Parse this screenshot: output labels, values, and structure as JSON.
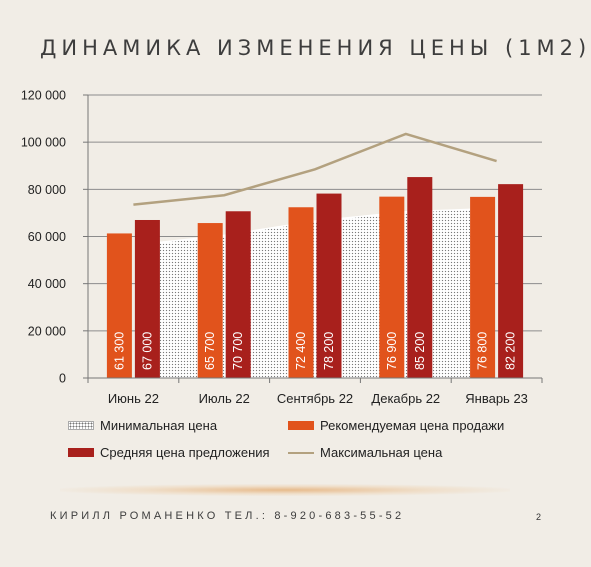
{
  "slide": {
    "title": "ДИНАМИКА ИЗМЕНЕНИЯ ЦЕНЫ (1М2)",
    "footer": "КИРИЛЛ РОМАНЕНКО ТЕЛ.: 8-920-683-55-52",
    "page_number": "2"
  },
  "colors": {
    "recommended": "#e1531c",
    "average": "#a8201c",
    "max_line": "#b3a17f",
    "min_area": "#ffffff"
  },
  "chart_data": {
    "type": "bar",
    "categories": [
      "Июнь 22",
      "Июль 22",
      "Сентябрь 22",
      "Декабрь 22",
      "Январь 23"
    ],
    "ylim": [
      0,
      120000
    ],
    "yticks": [
      0,
      20000,
      40000,
      60000,
      80000,
      100000,
      120000
    ],
    "ytick_labels": [
      "0",
      "20 000",
      "40 000",
      "60 000",
      "80 000",
      "100 000",
      "120 000"
    ],
    "grid": true,
    "legend_position": "bottom",
    "series": [
      {
        "name": "Минимальная цена",
        "kind": "area",
        "values": [
          57500,
          60500,
          66500,
          70500,
          71500
        ]
      },
      {
        "name": "Рекомендуемая цена продажи",
        "kind": "bar",
        "values": [
          61300,
          65700,
          72400,
          76900,
          76800
        ],
        "labels": [
          "61 300",
          "65 700",
          "72 400",
          "76 900",
          "76 800"
        ]
      },
      {
        "name": "Средняя цена предложения",
        "kind": "bar",
        "values": [
          67000,
          70700,
          78200,
          85200,
          82200
        ],
        "labels": [
          "67 000",
          "70 700",
          "78 200",
          "85 200",
          "82 200"
        ]
      },
      {
        "name": "Максимальная цена",
        "kind": "line",
        "values": [
          73500,
          77500,
          88500,
          103500,
          92000
        ]
      }
    ]
  }
}
